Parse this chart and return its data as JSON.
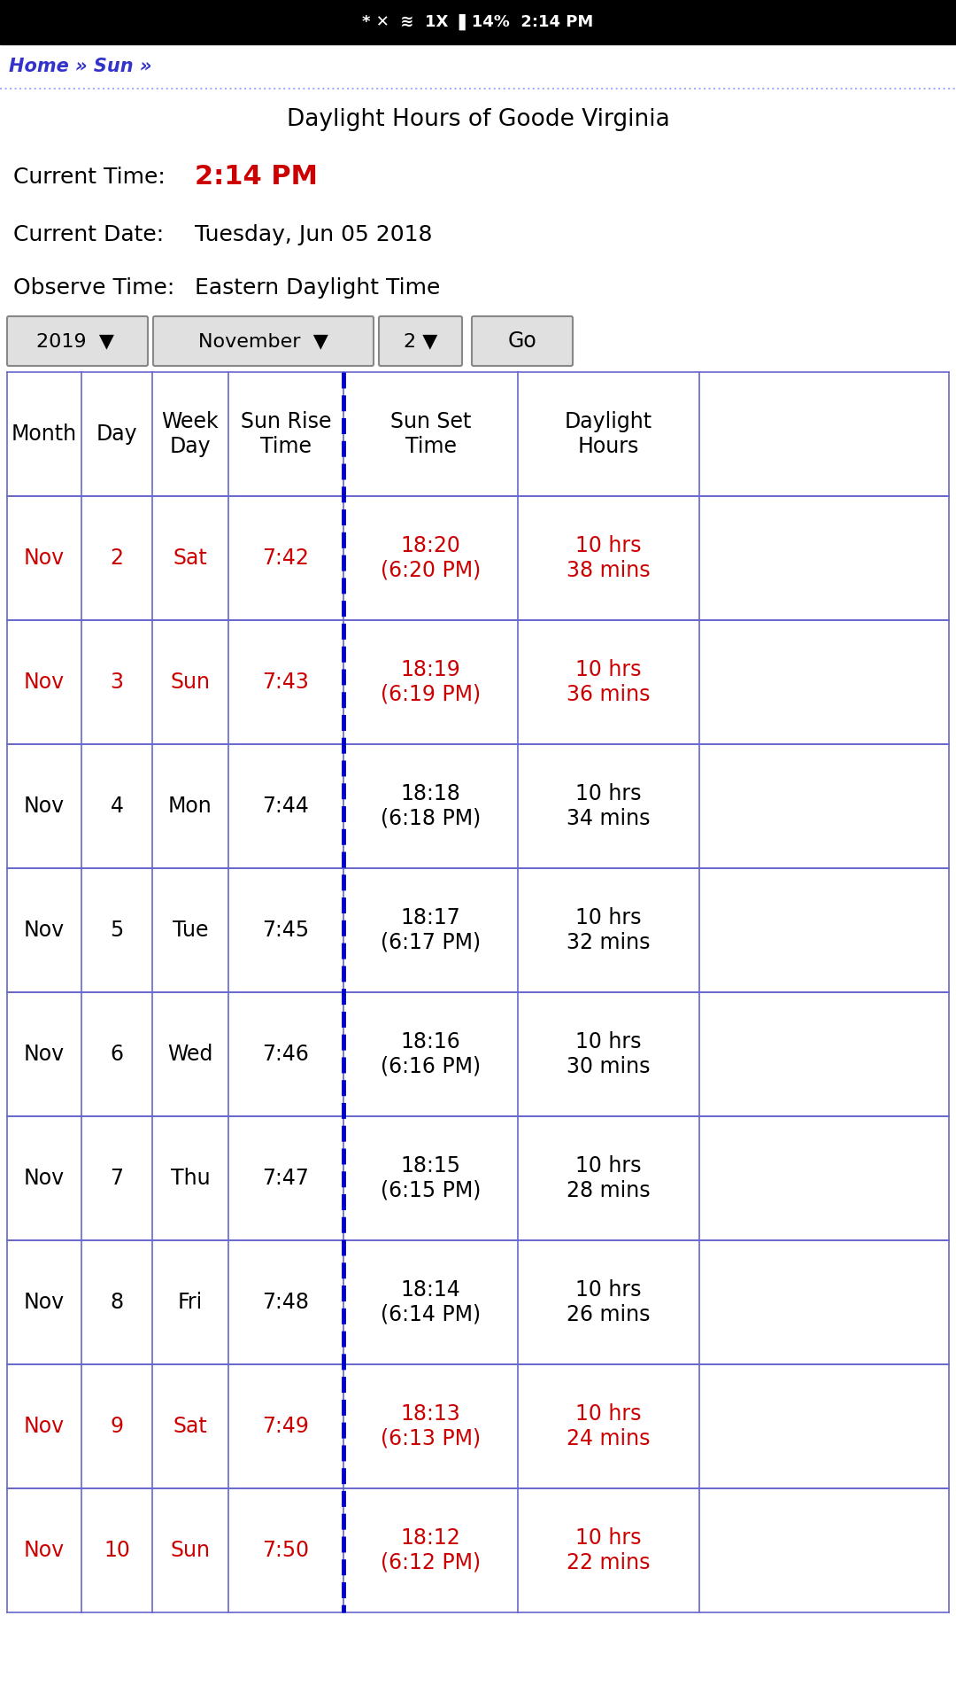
{
  "title": "Daylight Hours of Goode Virginia",
  "current_time_label": "Current Time:",
  "current_time_value": "2:14 PM",
  "current_date_label": "Current Date:",
  "current_date_value": "Tuesday, Jun 05 2018",
  "observe_label": "Observe Time:",
  "observe_value": "Eastern Daylight Time",
  "year_selector": "2019",
  "month_selector": "November",
  "day_selector": "2",
  "go_button": "Go",
  "nav_text": "Home » Sun »",
  "col_headers": [
    "Month",
    "Day",
    "Week\nDay",
    "Sun Rise\nTime",
    "Sun Set\nTime",
    "Daylight\nHours"
  ],
  "rows": [
    [
      "Nov",
      "2",
      "Sat",
      "7:42",
      "18:20\n(6:20 PM)",
      "10 hrs\n38 mins",
      true
    ],
    [
      "Nov",
      "3",
      "Sun",
      "7:43",
      "18:19\n(6:19 PM)",
      "10 hrs\n36 mins",
      true
    ],
    [
      "Nov",
      "4",
      "Mon",
      "7:44",
      "18:18\n(6:18 PM)",
      "10 hrs\n34 mins",
      false
    ],
    [
      "Nov",
      "5",
      "Tue",
      "7:45",
      "18:17\n(6:17 PM)",
      "10 hrs\n32 mins",
      false
    ],
    [
      "Nov",
      "6",
      "Wed",
      "7:46",
      "18:16\n(6:16 PM)",
      "10 hrs\n30 mins",
      false
    ],
    [
      "Nov",
      "7",
      "Thu",
      "7:47",
      "18:15\n(6:15 PM)",
      "10 hrs\n28 mins",
      false
    ],
    [
      "Nov",
      "8",
      "Fri",
      "7:48",
      "18:14\n(6:14 PM)",
      "10 hrs\n26 mins",
      false
    ],
    [
      "Nov",
      "9",
      "Sat",
      "7:49",
      "18:13\n(6:13 PM)",
      "10 hrs\n24 mins",
      true
    ],
    [
      "Nov",
      "10",
      "Sun",
      "7:50",
      "18:12\n(6:12 PM)",
      "10 hrs\n22 mins",
      true
    ]
  ],
  "bg_color": "#ffffff",
  "table_border_color": "#6666cc",
  "dashed_line_color": "#0000cc",
  "header_text_color": "#000000",
  "weekend_color": "#cc0000",
  "weekday_color": "#000000",
  "status_bar_color": "#000000",
  "selector_bg": "#e0e0e0",
  "dotted_line_color": "#aaaaff"
}
